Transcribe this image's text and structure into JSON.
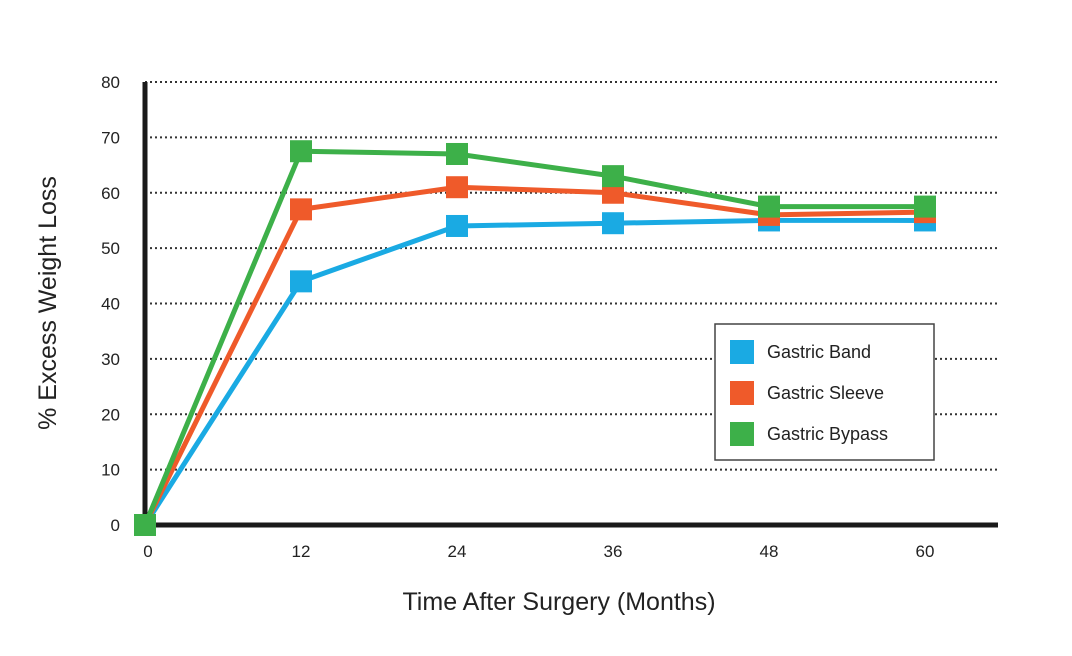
{
  "chart_data": {
    "type": "line",
    "title": "",
    "xlabel": "Time After Surgery (Months)",
    "ylabel": "% Excess Weight Loss",
    "x": [
      0,
      12,
      24,
      36,
      48,
      60
    ],
    "xlim": [
      0,
      66
    ],
    "ylim": [
      0,
      80
    ],
    "yticks": [
      0,
      10,
      20,
      30,
      40,
      50,
      60,
      70,
      80
    ],
    "xticks": [
      0,
      12,
      24,
      36,
      48,
      60
    ],
    "grid": "horizontal dotted",
    "legend_position": "lower-right",
    "series": [
      {
        "name": "Gastric Band",
        "color": "#1AAAE3",
        "values": [
          0,
          44,
          54,
          54.5,
          55,
          55
        ]
      },
      {
        "name": "Gastric Sleeve",
        "color": "#EF5A2A",
        "values": [
          0,
          57,
          61,
          60,
          56,
          56.5
        ]
      },
      {
        "name": "Gastric Bypass",
        "color": "#3DB049",
        "values": [
          0,
          67.5,
          67,
          63,
          57.5,
          57.5
        ]
      }
    ]
  }
}
